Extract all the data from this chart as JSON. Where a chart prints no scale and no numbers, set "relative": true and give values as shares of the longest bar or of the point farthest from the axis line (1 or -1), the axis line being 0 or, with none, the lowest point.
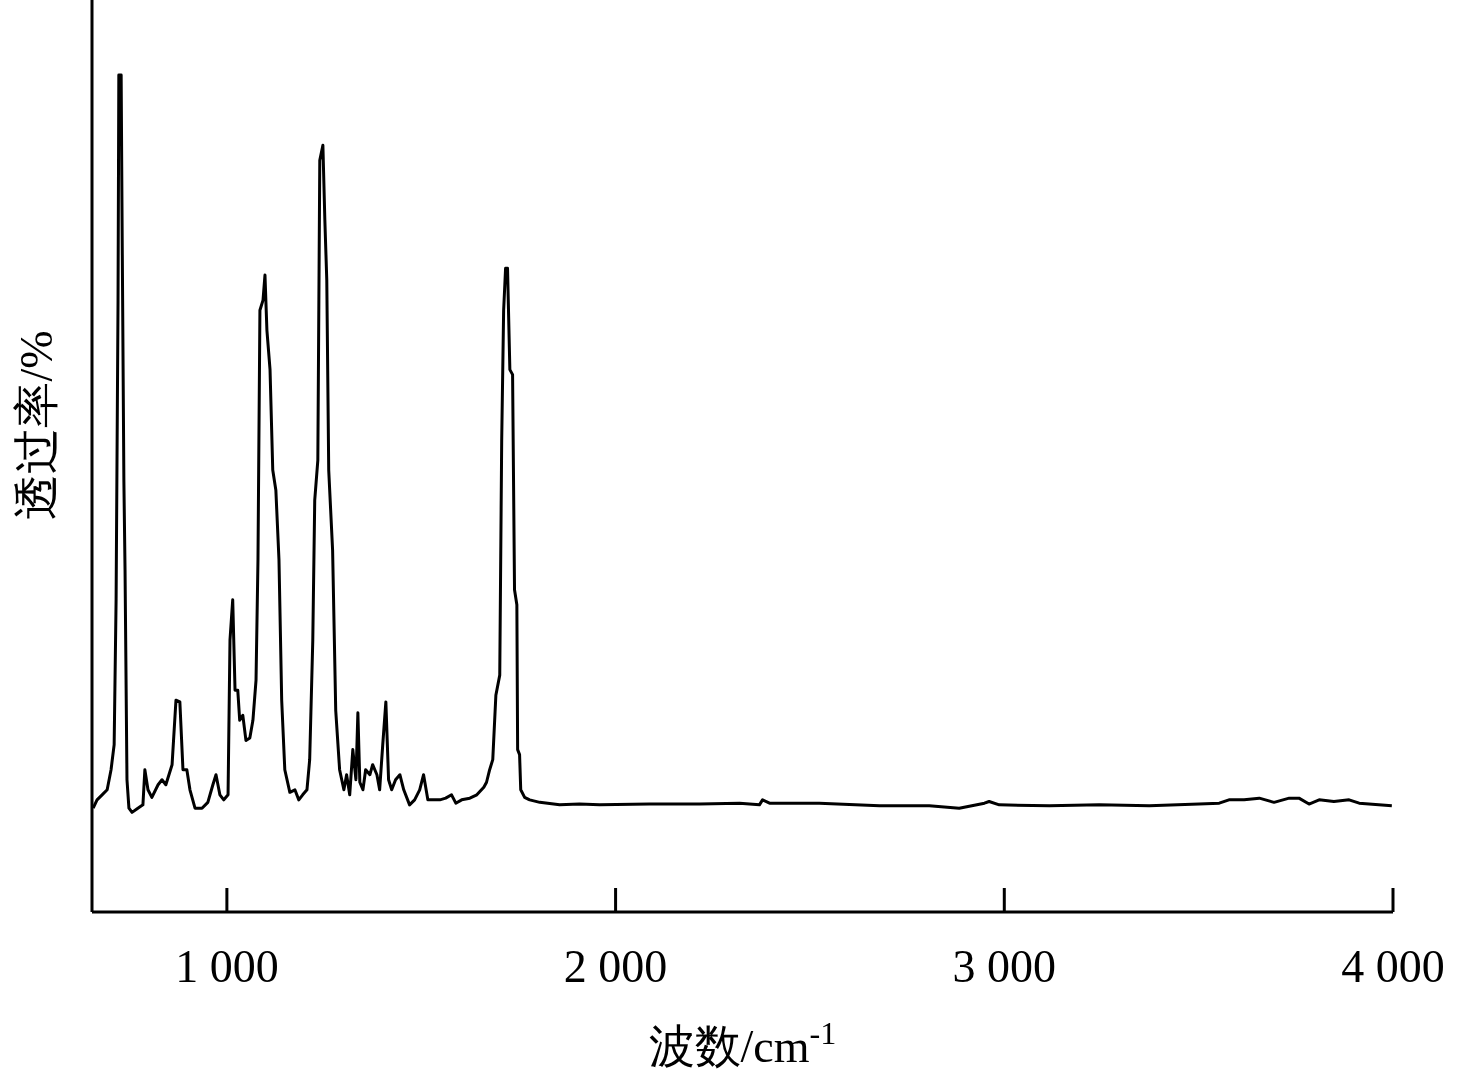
{
  "chart_data": {
    "type": "line",
    "relative": true,
    "xlabel": "波数/cm$^{-1}$",
    "ylabel": "透过率/%",
    "color": "#000000",
    "xlim": [
      653,
      4000
    ],
    "xticks": [
      {
        "value": 1000,
        "label": "1 000"
      },
      {
        "value": 2000,
        "label": "2 000"
      },
      {
        "value": 3000,
        "label": "3 000"
      },
      {
        "value": 4000,
        "label": "4 000"
      }
    ],
    "x": [
      656,
      666,
      679,
      692,
      702,
      710,
      715,
      720,
      722,
      728,
      730,
      735,
      738,
      743,
      748,
      756,
      771,
      784,
      789,
      797,
      807,
      823,
      833,
      843,
      859,
      869,
      879,
      887,
      897,
      905,
      918,
      936,
      951,
      964,
      972,
      982,
      992,
      1003,
      1008,
      1015,
      1021,
      1028,
      1033,
      1041,
      1049,
      1059,
      1067,
      1075,
      1080,
      1085,
      1093,
      1098,
      1103,
      1111,
      1118,
      1126,
      1134,
      1141,
      1149,
      1162,
      1175,
      1185,
      1195,
      1206,
      1213,
      1221,
      1226,
      1234,
      1239,
      1247,
      1252,
      1257,
      1262,
      1272,
      1280,
      1290,
      1301,
      1308,
      1316,
      1324,
      1332,
      1337,
      1342,
      1350,
      1357,
      1368,
      1375,
      1386,
      1393,
      1401,
      1409,
      1416,
      1424,
      1434,
      1445,
      1455,
      1470,
      1483,
      1496,
      1506,
      1517,
      1530,
      1548,
      1563,
      1578,
      1589,
      1604,
      1625,
      1643,
      1661,
      1668,
      1676,
      1684,
      1692,
      1702,
      1707,
      1712,
      1717,
      1722,
      1728,
      1735,
      1740,
      1746,
      1748,
      1753,
      1756,
      1766,
      1779,
      1805,
      1856,
      1907,
      1959,
      2087,
      2216,
      2319,
      2370,
      2378,
      2396,
      2524,
      2679,
      2807,
      2884,
      2949,
      2961,
      2987,
      3116,
      3244,
      3373,
      3501,
      3553,
      3578,
      3617,
      3656,
      3694,
      3733,
      3758,
      3784,
      3810,
      3848,
      3887,
      3913,
      3997
    ],
    "values": [
      0.124,
      0.134,
      0.14,
      0.146,
      0.17,
      0.2,
      0.373,
      0.731,
      1,
      1,
      0.851,
      0.516,
      0.409,
      0.158,
      0.124,
      0.119,
      0.124,
      0.128,
      0.17,
      0.146,
      0.137,
      0.152,
      0.158,
      0.152,
      0.176,
      0.253,
      0.251,
      0.17,
      0.17,
      0.146,
      0.124,
      0.124,
      0.131,
      0.152,
      0.164,
      0.14,
      0.134,
      0.14,
      0.325,
      0.373,
      0.265,
      0.265,
      0.229,
      0.235,
      0.205,
      0.208,
      0.229,
      0.277,
      0.421,
      0.719,
      0.731,
      0.761,
      0.695,
      0.648,
      0.528,
      0.504,
      0.421,
      0.253,
      0.17,
      0.143,
      0.146,
      0.134,
      0.14,
      0.146,
      0.182,
      0.325,
      0.492,
      0.54,
      0.898,
      0.916,
      0.827,
      0.755,
      0.528,
      0.432,
      0.241,
      0.17,
      0.146,
      0.164,
      0.14,
      0.194,
      0.158,
      0.238,
      0.155,
      0.146,
      0.17,
      0.164,
      0.176,
      0.164,
      0.146,
      0.2,
      0.251,
      0.158,
      0.146,
      0.158,
      0.164,
      0.146,
      0.128,
      0.134,
      0.146,
      0.164,
      0.134,
      0.134,
      0.134,
      0.136,
      0.14,
      0.13,
      0.134,
      0.136,
      0.14,
      0.149,
      0.155,
      0.17,
      0.182,
      0.259,
      0.283,
      0.564,
      0.719,
      0.769,
      0.769,
      0.648,
      0.642,
      0.385,
      0.367,
      0.194,
      0.188,
      0.146,
      0.137,
      0.134,
      0.131,
      0.128,
      0.129,
      0.128,
      0.129,
      0.129,
      0.13,
      0.128,
      0.134,
      0.13,
      0.13,
      0.127,
      0.127,
      0.124,
      0.13,
      0.132,
      0.128,
      0.127,
      0.128,
      0.127,
      0.129,
      0.13,
      0.134,
      0.134,
      0.136,
      0.131,
      0.136,
      0.136,
      0.129,
      0.134,
      0.132,
      0.134,
      0.13,
      0.127
    ]
  }
}
